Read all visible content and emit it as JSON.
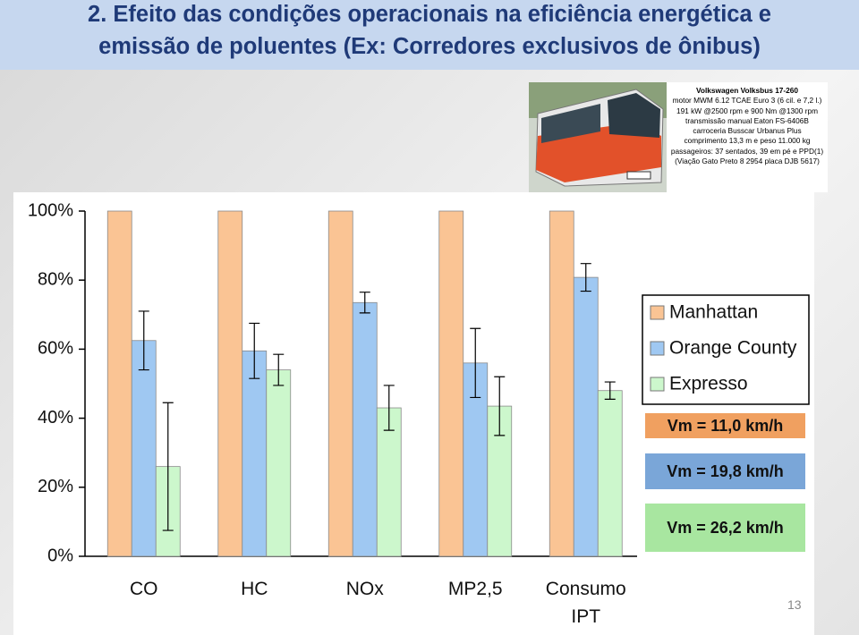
{
  "slide": {
    "title": [
      "2. Efeito das condições operacionais na eficiência energética e",
      "emissão de poluentes (Ex: Corredores exclusivos de ônibus)"
    ],
    "page_number": 13
  },
  "bus_spec": [
    "Volkswagen Volksbus 17-260",
    "motor MWM 6.12 TCAE Euro 3 (6 cil. e 7,2 l.)",
    "191 kW @2500 rpm e 900 Nm @1300 rpm",
    "transmissão manual Eaton FS-6406B",
    "carroceria Busscar Urbanus Plus",
    "comprimento 13,3 m e peso 11.000 kg",
    "passageiros: 37 sentados, 39 em pé e PPD(1)",
    "(Viação Gato Preto 8 2954 placa DJB 5617)"
  ],
  "speed_labels": [
    "Vm = 11,0 km/h",
    "Vm = 19,8 km/h",
    "Vm = 26,2 km/h"
  ],
  "chart_data": {
    "type": "bar",
    "categories": [
      "CO",
      "HC",
      "NOx",
      "MP2,5",
      "Consumo IPT"
    ],
    "series": [
      {
        "name": "Manhattan",
        "color": "#fac494",
        "values": [
          100,
          100,
          100,
          100,
          100
        ]
      },
      {
        "name": "Orange County",
        "color": "#9fc8f2",
        "values": [
          62.5,
          59.5,
          73.5,
          56,
          80.8
        ],
        "errors": [
          8.5,
          8,
          3,
          10,
          4
        ]
      },
      {
        "name": "Expresso",
        "color": "#ccf7cc",
        "values": [
          26,
          54,
          43,
          43.5,
          48
        ],
        "errors": [
          18.5,
          4.5,
          6.5,
          8.5,
          2.5
        ]
      }
    ],
    "ylim": [
      0,
      100
    ],
    "yticks": [
      {
        "value": 0,
        "label": "0%"
      },
      {
        "value": 20,
        "label": "20%"
      },
      {
        "value": 40,
        "label": "40%"
      },
      {
        "value": 60,
        "label": "60%"
      },
      {
        "value": 80,
        "label": "80%"
      },
      {
        "value": 100,
        "label": "100%"
      }
    ]
  }
}
